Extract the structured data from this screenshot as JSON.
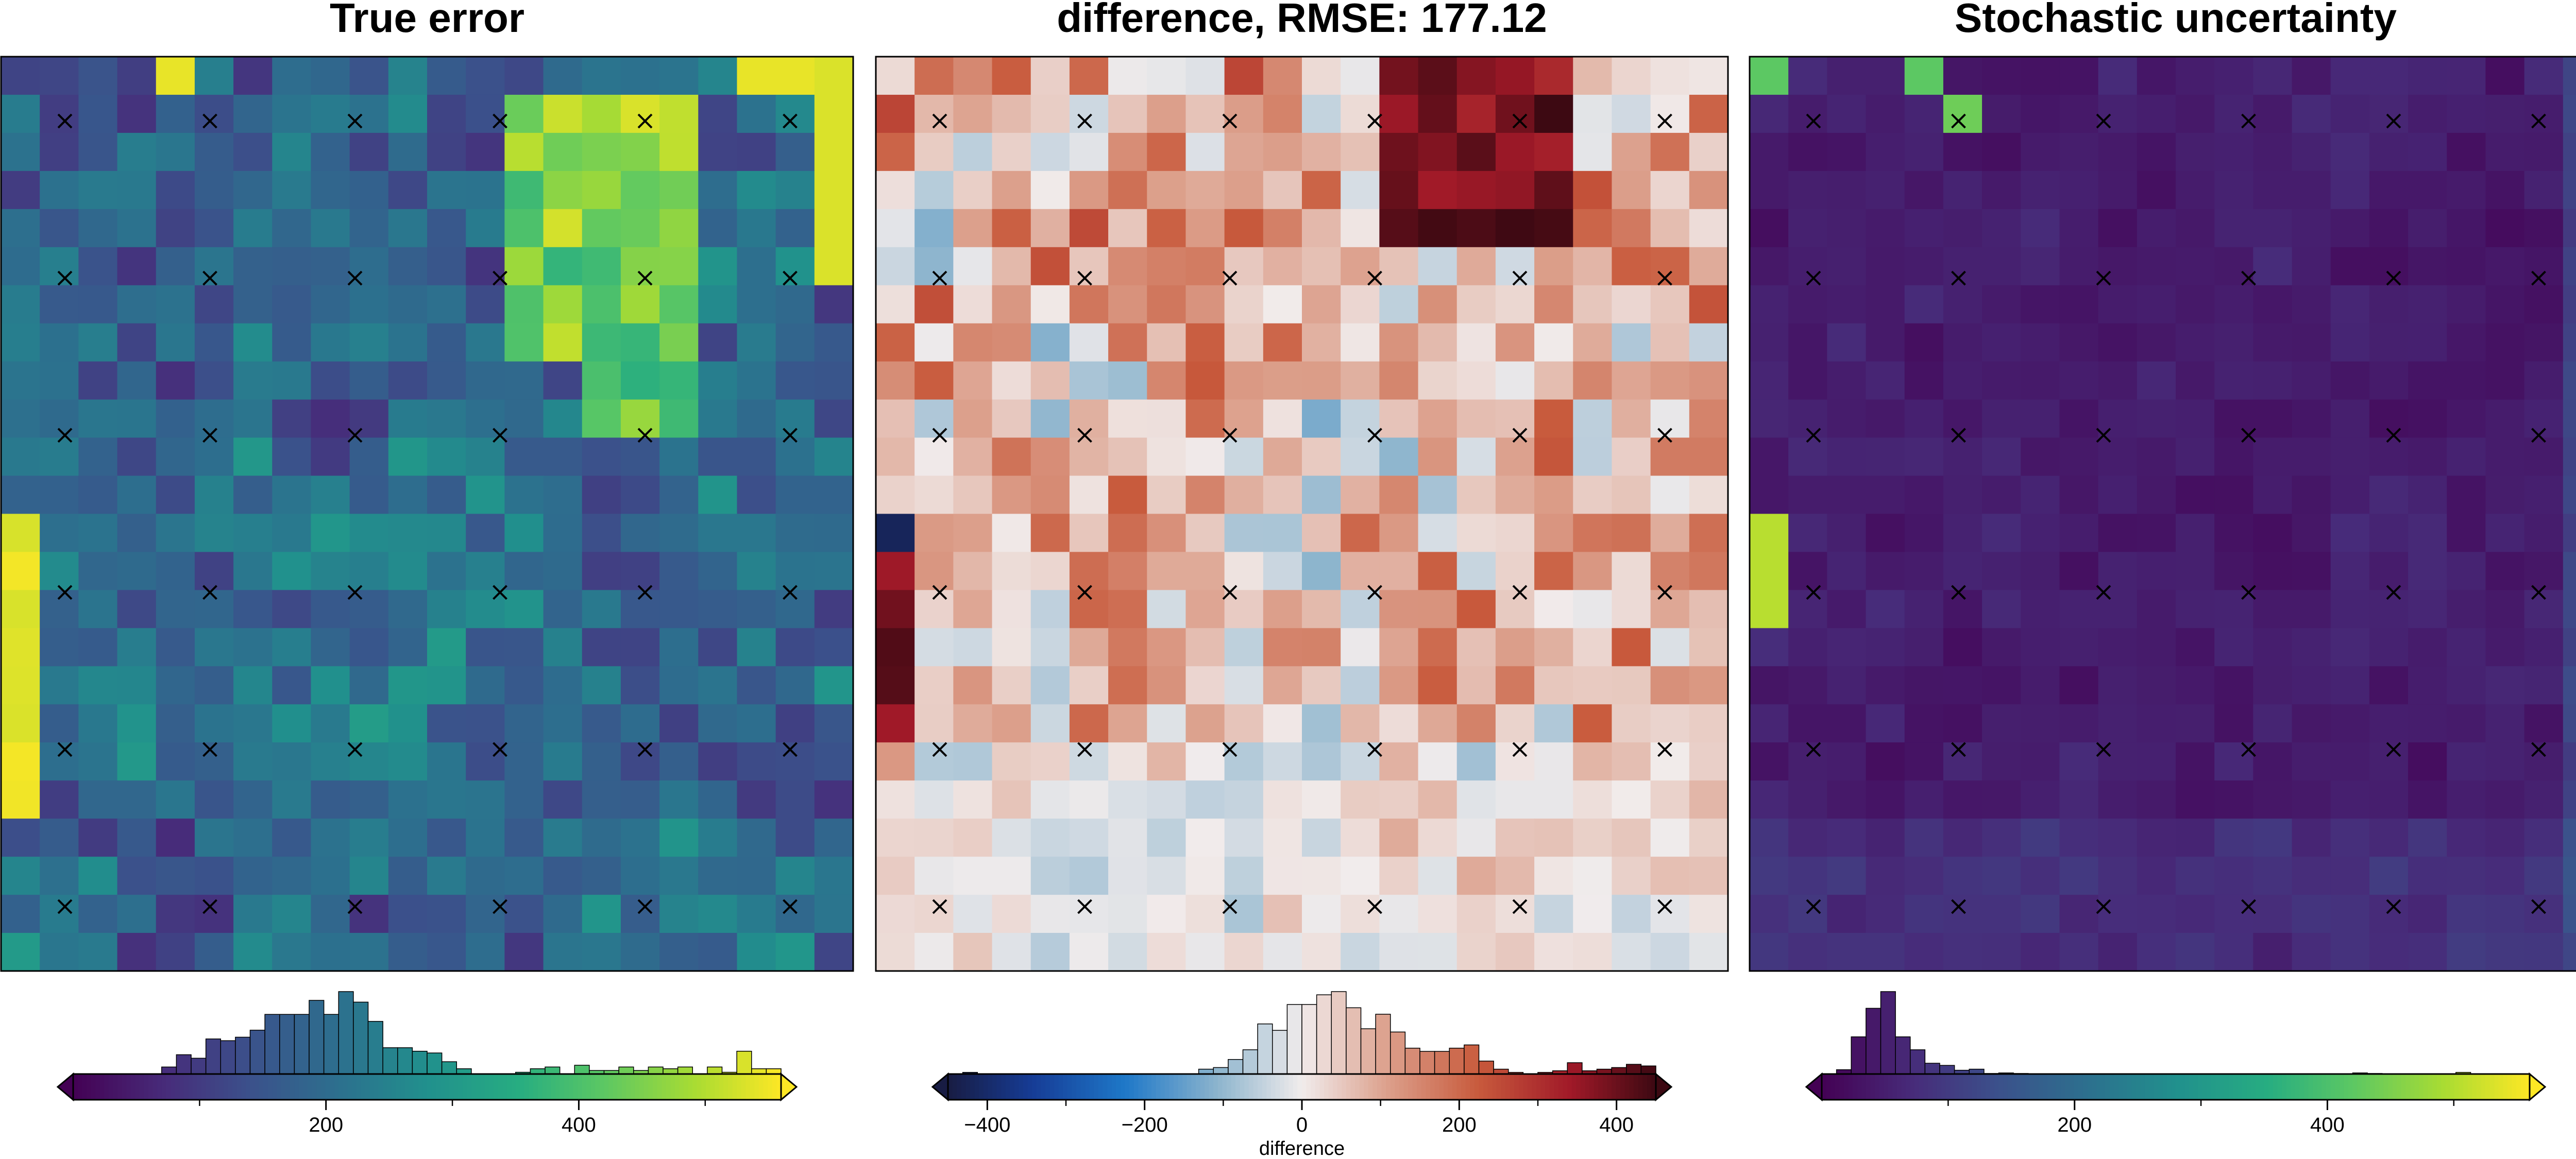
{
  "chart_data": [
    {
      "type": "heatmap",
      "title": "True error",
      "colormap": "viridis",
      "colorbar": {
        "range": [
          0,
          560
        ],
        "extend": "both",
        "ticks": [
          200,
          400
        ],
        "tick_labels": [
          "200",
          "400"
        ],
        "label": "",
        "histogram": "shown above colorbar (distribution of cell values)"
      },
      "grid_shape": [
        24,
        22
      ],
      "control_points": "6 x 6 regular grid marked with x",
      "notable_features": "highest values (yellow) along left edge rows 12-18, right edge column, and upper-right cluster"
    },
    {
      "type": "heatmap",
      "title": "difference, RMSE: 177.12",
      "colormap": "balance (diverging blue-white-red)",
      "colorbar": {
        "range": [
          -450,
          450
        ],
        "extend": "both",
        "ticks": [
          -400,
          -200,
          0,
          200,
          400
        ],
        "tick_labels": [
          "−400",
          "−200",
          "0",
          "200",
          "400"
        ],
        "label": "difference",
        "histogram": "shown above colorbar (distribution of cell values)"
      },
      "grid_shape": [
        24,
        22
      ],
      "control_points": "6 x 6 regular grid marked with x",
      "rmse": 177.12
    },
    {
      "type": "heatmap",
      "title": "Stochastic uncertainty",
      "colormap": "viridis",
      "colorbar": {
        "range": [
          0,
          560
        ],
        "extend": "both",
        "ticks": [
          200,
          400
        ],
        "tick_labels": [
          "200",
          "400"
        ],
        "label": "",
        "histogram": "shown above colorbar (distribution of cell values)"
      },
      "grid_shape": [
        24,
        22
      ],
      "control_points": "6 x 6 regular grid marked with x",
      "notable_features": "mostly low values (dark purple); a few bright cells near top-left and left edge"
    }
  ]
}
